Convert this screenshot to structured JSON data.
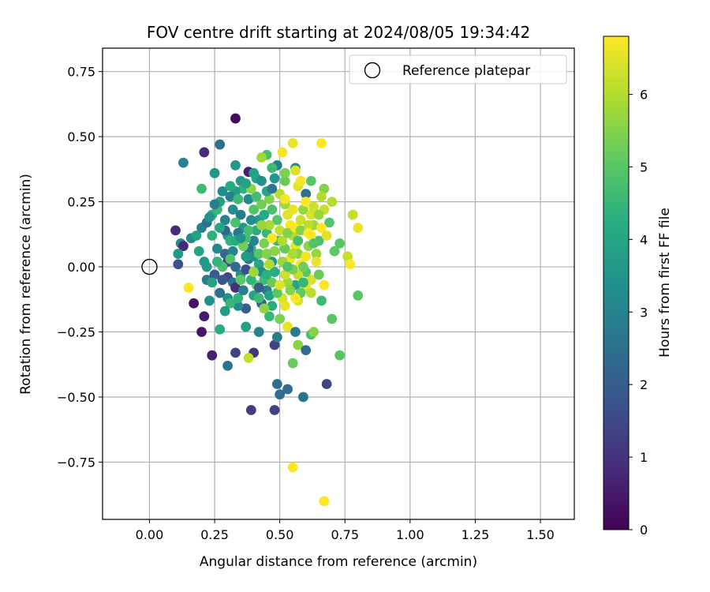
{
  "chart_data": {
    "type": "scatter",
    "title": "FOV centre drift starting at 2024/08/05 19:34:42",
    "xlabel": "Angular distance from reference (arcmin)",
    "ylabel": "Rotation from reference (arcmin)",
    "xlim": [
      -0.18,
      1.63
    ],
    "ylim": [
      -0.97,
      0.84
    ],
    "xticks": [
      0.0,
      0.25,
      0.5,
      0.75,
      1.0,
      1.25,
      1.5
    ],
    "xtick_labels": [
      "0.00",
      "0.25",
      "0.50",
      "0.75",
      "1.00",
      "1.25",
      "1.50"
    ],
    "yticks": [
      -0.75,
      -0.5,
      -0.25,
      0.0,
      0.25,
      0.5,
      0.75
    ],
    "ytick_labels": [
      "−0.75",
      "−0.50",
      "−0.25",
      "0.00",
      "0.25",
      "0.50",
      "0.75"
    ],
    "grid": true,
    "legend": {
      "position": "top-right",
      "entries": [
        "Reference platepar"
      ]
    },
    "reference_point": {
      "x": 0.0,
      "y": 0.0
    },
    "colorbar": {
      "label": "Hours from first FF file",
      "min": 0,
      "max": 6.8,
      "ticks": [
        0,
        1,
        2,
        3,
        4,
        5,
        6
      ],
      "tick_labels": [
        "0",
        "1",
        "2",
        "3",
        "4",
        "5",
        "6"
      ],
      "colormap": "viridis"
    },
    "points": [
      [
        0.33,
        0.57,
        0.2
      ],
      [
        0.55,
        0.475,
        6.6
      ],
      [
        0.66,
        0.475,
        6.8
      ],
      [
        0.21,
        0.44,
        0.8
      ],
      [
        0.27,
        0.47,
        2.5
      ],
      [
        0.45,
        0.43,
        4.8
      ],
      [
        0.51,
        0.44,
        6.7
      ],
      [
        0.13,
        0.4,
        3.0
      ],
      [
        0.33,
        0.39,
        3.6
      ],
      [
        0.38,
        0.365,
        0.6
      ],
      [
        0.43,
        0.42,
        5.8
      ],
      [
        0.56,
        0.38,
        3.2
      ],
      [
        0.56,
        0.37,
        6.4
      ],
      [
        0.35,
        0.33,
        3.6
      ],
      [
        0.41,
        0.34,
        4.0
      ],
      [
        0.48,
        0.34,
        3.6
      ],
      [
        0.52,
        0.33,
        5.2
      ],
      [
        0.25,
        0.36,
        3.6
      ],
      [
        0.62,
        0.33,
        5.0
      ],
      [
        0.67,
        0.3,
        5.5
      ],
      [
        0.2,
        0.3,
        4.6
      ],
      [
        0.6,
        0.28,
        2.5
      ],
      [
        0.66,
        0.27,
        6.0
      ],
      [
        0.16,
        0.11,
        3.2
      ],
      [
        0.1,
        0.14,
        0.8
      ],
      [
        0.12,
        0.09,
        3.3
      ],
      [
        0.13,
        0.08,
        0.8
      ],
      [
        0.11,
        0.05,
        3.6
      ],
      [
        0.11,
        0.01,
        1.7
      ],
      [
        0.15,
        -0.08,
        6.8
      ],
      [
        0.17,
        -0.14,
        0.4
      ],
      [
        0.2,
        -0.25,
        0.4
      ],
      [
        0.21,
        -0.19,
        0.5
      ],
      [
        0.24,
        -0.34,
        0.6
      ],
      [
        0.27,
        -0.24,
        4.2
      ],
      [
        0.3,
        -0.38,
        2.6
      ],
      [
        0.33,
        -0.33,
        1.3
      ],
      [
        0.37,
        -0.23,
        3.8
      ],
      [
        0.4,
        -0.33,
        1.0
      ],
      [
        0.39,
        -0.55,
        1.2
      ],
      [
        0.48,
        -0.3,
        1.3
      ],
      [
        0.48,
        -0.55,
        1.3
      ],
      [
        0.49,
        -0.45,
        2.5
      ],
      [
        0.5,
        -0.49,
        2.5
      ],
      [
        0.53,
        -0.47,
        2.4
      ],
      [
        0.59,
        -0.5,
        2.6
      ],
      [
        0.68,
        -0.45,
        1.4
      ],
      [
        0.38,
        -0.35,
        6.2
      ],
      [
        0.55,
        -0.37,
        5.2
      ],
      [
        0.57,
        -0.3,
        5.6
      ],
      [
        0.6,
        -0.32,
        2.4
      ],
      [
        0.62,
        -0.26,
        4.8
      ],
      [
        0.63,
        -0.25,
        5.5
      ],
      [
        0.66,
        -0.13,
        4.6
      ],
      [
        0.7,
        -0.2,
        5.0
      ],
      [
        0.73,
        -0.34,
        5.0
      ],
      [
        0.55,
        -0.77,
        6.8
      ],
      [
        0.67,
        -0.9,
        6.8
      ],
      [
        0.8,
        -0.11,
        5.0
      ],
      [
        0.76,
        0.04,
        6.2
      ],
      [
        0.77,
        0.01,
        6.8
      ],
      [
        0.73,
        0.09,
        5.0
      ],
      [
        0.78,
        0.2,
        6.2
      ],
      [
        0.8,
        0.15,
        6.6
      ],
      [
        0.67,
        0.22,
        6.2
      ],
      [
        0.7,
        0.25,
        6.0
      ],
      [
        0.69,
        0.17,
        4.9
      ],
      [
        0.65,
        0.1,
        4.8
      ],
      [
        0.64,
        0.05,
        5.7
      ],
      [
        0.62,
        -0.05,
        6.4
      ],
      [
        0.67,
        -0.07,
        6.8
      ],
      [
        0.6,
        -0.02,
        5.0
      ],
      [
        0.57,
        -0.13,
        6.4
      ],
      [
        0.56,
        -0.07,
        4.0
      ],
      [
        0.53,
        -0.06,
        5.8
      ],
      [
        0.52,
        -0.15,
        6.6
      ],
      [
        0.5,
        -0.2,
        5.4
      ],
      [
        0.46,
        -0.19,
        4.5
      ],
      [
        0.43,
        -0.14,
        2.2
      ],
      [
        0.4,
        -0.11,
        4.0
      ],
      [
        0.37,
        -0.16,
        2.0
      ],
      [
        0.34,
        -0.15,
        3.2
      ],
      [
        0.3,
        -0.12,
        3.4
      ],
      [
        0.27,
        -0.1,
        2.5
      ],
      [
        0.23,
        -0.13,
        3.4
      ],
      [
        0.22,
        -0.05,
        2.8
      ],
      [
        0.25,
        -0.03,
        2.0
      ],
      [
        0.22,
        0.0,
        3.7
      ],
      [
        0.21,
        0.02,
        3.6
      ],
      [
        0.19,
        0.06,
        4.0
      ],
      [
        0.18,
        0.12,
        3.9
      ],
      [
        0.2,
        0.15,
        3.0
      ],
      [
        0.22,
        0.17,
        2.5
      ],
      [
        0.24,
        0.2,
        4.2
      ],
      [
        0.26,
        0.22,
        4.5
      ],
      [
        0.27,
        0.25,
        3.8
      ],
      [
        0.29,
        0.18,
        3.0
      ],
      [
        0.3,
        0.12,
        3.6
      ],
      [
        0.31,
        0.1,
        4.4
      ],
      [
        0.29,
        0.05,
        2.3
      ],
      [
        0.3,
        0.02,
        1.3
      ],
      [
        0.28,
        0.0,
        4.8
      ],
      [
        0.3,
        -0.04,
        1.5
      ],
      [
        0.32,
        -0.06,
        2.6
      ],
      [
        0.33,
        -0.08,
        0.9
      ],
      [
        0.35,
        -0.03,
        3.4
      ],
      [
        0.37,
        -0.01,
        1.6
      ],
      [
        0.38,
        0.03,
        2.8
      ],
      [
        0.39,
        0.07,
        4.5
      ],
      [
        0.4,
        0.1,
        3.0
      ],
      [
        0.41,
        0.14,
        4.2
      ],
      [
        0.42,
        0.18,
        3.6
      ],
      [
        0.4,
        0.22,
        4.9
      ],
      [
        0.38,
        0.26,
        3.2
      ],
      [
        0.36,
        0.3,
        4.4
      ],
      [
        0.33,
        0.29,
        3.7
      ],
      [
        0.31,
        0.27,
        3.0
      ],
      [
        0.35,
        0.2,
        2.8
      ],
      [
        0.36,
        0.15,
        3.6
      ],
      [
        0.37,
        0.11,
        4.8
      ],
      [
        0.38,
        0.07,
        2.6
      ],
      [
        0.4,
        0.04,
        3.4
      ],
      [
        0.42,
        0.01,
        4.0
      ],
      [
        0.43,
        -0.02,
        3.2
      ],
      [
        0.44,
        -0.05,
        4.6
      ],
      [
        0.45,
        -0.09,
        2.8
      ],
      [
        0.46,
        -0.11,
        3.9
      ],
      [
        0.47,
        -0.06,
        5.2
      ],
      [
        0.48,
        -0.02,
        4.2
      ],
      [
        0.47,
        0.02,
        3.5
      ],
      [
        0.48,
        0.06,
        5.6
      ],
      [
        0.49,
        0.1,
        4.6
      ],
      [
        0.5,
        0.14,
        6.2
      ],
      [
        0.49,
        0.18,
        5.0
      ],
      [
        0.47,
        0.22,
        4.8
      ],
      [
        0.46,
        0.26,
        5.5
      ],
      [
        0.45,
        0.29,
        4.0
      ],
      [
        0.5,
        0.28,
        6.1
      ],
      [
        0.52,
        0.24,
        5.8
      ],
      [
        0.53,
        0.2,
        6.5
      ],
      [
        0.54,
        0.16,
        6.8
      ],
      [
        0.55,
        0.12,
        6.0
      ],
      [
        0.56,
        0.08,
        6.6
      ],
      [
        0.57,
        0.05,
        5.6
      ],
      [
        0.58,
        0.01,
        6.8
      ],
      [
        0.57,
        -0.03,
        6.2
      ],
      [
        0.55,
        -0.01,
        5.4
      ],
      [
        0.54,
        0.03,
        6.7
      ],
      [
        0.52,
        0.07,
        5.2
      ],
      [
        0.51,
        0.1,
        6.0
      ],
      [
        0.53,
        0.13,
        5.5
      ],
      [
        0.56,
        0.15,
        6.9
      ],
      [
        0.58,
        0.18,
        6.3
      ],
      [
        0.59,
        0.22,
        5.7
      ],
      [
        0.6,
        0.25,
        6.8
      ],
      [
        0.62,
        0.2,
        6.4
      ],
      [
        0.63,
        0.16,
        5.8
      ],
      [
        0.62,
        0.12,
        6.8
      ],
      [
        0.61,
        0.08,
        5.6
      ],
      [
        0.6,
        0.04,
        6.7
      ],
      [
        0.59,
        0.0,
        5.3
      ],
      [
        0.6,
        -0.08,
        6.5
      ],
      [
        0.58,
        -0.1,
        5.1
      ],
      [
        0.56,
        -0.12,
        6.8
      ],
      [
        0.54,
        -0.09,
        5.5
      ],
      [
        0.51,
        -0.12,
        6.4
      ],
      [
        0.49,
        -0.1,
        5.0
      ],
      [
        0.47,
        -0.15,
        4.2
      ],
      [
        0.44,
        -0.16,
        5.6
      ],
      [
        0.42,
        -0.12,
        4.6
      ],
      [
        0.41,
        -0.07,
        5.2
      ],
      [
        0.39,
        -0.05,
        4.4
      ],
      [
        0.4,
        -0.02,
        5.8
      ],
      [
        0.42,
        0.05,
        5.0
      ],
      [
        0.44,
        0.09,
        5.4
      ],
      [
        0.45,
        0.13,
        4.5
      ],
      [
        0.46,
        0.16,
        5.9
      ],
      [
        0.44,
        0.2,
        4.1
      ],
      [
        0.43,
        0.24,
        5.3
      ],
      [
        0.41,
        0.27,
        4.7
      ],
      [
        0.39,
        0.3,
        5.6
      ],
      [
        0.37,
        0.32,
        3.9
      ],
      [
        0.34,
        0.26,
        4.6
      ],
      [
        0.32,
        0.22,
        3.3
      ],
      [
        0.33,
        0.17,
        4.8
      ],
      [
        0.34,
        0.13,
        2.7
      ],
      [
        0.33,
        0.1,
        4.2
      ],
      [
        0.32,
        0.06,
        3.1
      ],
      [
        0.31,
        0.03,
        4.9
      ],
      [
        0.33,
        0.0,
        2.4
      ],
      [
        0.34,
        -0.12,
        4.4
      ],
      [
        0.36,
        -0.09,
        2.9
      ],
      [
        0.35,
        -0.05,
        5.1
      ],
      [
        0.37,
        0.04,
        3.7
      ],
      [
        0.36,
        0.08,
        5.3
      ],
      [
        0.35,
        0.11,
        3.5
      ],
      [
        0.38,
        0.14,
        4.7
      ],
      [
        0.39,
        0.18,
        3.3
      ],
      [
        0.43,
        0.16,
        5.7
      ],
      [
        0.45,
        0.05,
        5.5
      ],
      [
        0.46,
        0.01,
        6.0
      ],
      [
        0.45,
        -0.03,
        4.3
      ],
      [
        0.51,
        0.02,
        5.7
      ],
      [
        0.52,
        -0.03,
        6.3
      ],
      [
        0.53,
        0.0,
        4.9
      ],
      [
        0.55,
        0.05,
        5.9
      ],
      [
        0.57,
        0.1,
        4.7
      ],
      [
        0.58,
        0.14,
        5.5
      ],
      [
        0.61,
        0.16,
        6.1
      ],
      [
        0.63,
        0.09,
        4.9
      ],
      [
        0.64,
        0.02,
        6.6
      ],
      [
        0.65,
        -0.03,
        5.2
      ],
      [
        0.62,
        -0.1,
        6.1
      ],
      [
        0.59,
        -0.06,
        4.5
      ],
      [
        0.53,
        -0.23,
        6.6
      ],
      [
        0.56,
        -0.25,
        2.8
      ],
      [
        0.49,
        -0.27,
        2.9
      ],
      [
        0.42,
        -0.08,
        2.0
      ],
      [
        0.28,
        -0.05,
        1.8
      ],
      [
        0.26,
        0.07,
        3.1
      ],
      [
        0.24,
        0.12,
        4.3
      ],
      [
        0.23,
        0.19,
        3.5
      ],
      [
        0.25,
        0.24,
        2.9
      ],
      [
        0.28,
        0.29,
        3.3
      ],
      [
        0.31,
        0.31,
        4.1
      ],
      [
        0.29,
        0.14,
        2.2
      ],
      [
        0.27,
        0.15,
        4.0
      ],
      [
        0.26,
        0.02,
        4.4
      ],
      [
        0.24,
        -0.06,
        3.9
      ],
      [
        0.31,
        -0.14,
        4.5
      ],
      [
        0.29,
        -0.17,
        3.7
      ],
      [
        0.42,
        -0.25,
        3.0
      ],
      [
        0.47,
        0.3,
        2.7
      ],
      [
        0.52,
        0.36,
        5.4
      ],
      [
        0.57,
        0.31,
        6.5
      ],
      [
        0.5,
        -0.07,
        6.5
      ],
      [
        0.47,
        0.11,
        6.8
      ],
      [
        0.52,
        0.26,
        6.7
      ],
      [
        0.55,
        0.22,
        6.6
      ],
      [
        0.61,
        0.13,
        6.8
      ],
      [
        0.58,
        0.33,
        6.7
      ],
      [
        0.49,
        0.39,
        2.9
      ],
      [
        0.47,
        0.38,
        4.6
      ],
      [
        0.4,
        0.36,
        3.9
      ],
      [
        0.43,
        0.33,
        3.4
      ],
      [
        0.63,
        0.23,
        6.3
      ],
      [
        0.65,
        0.2,
        5.7
      ],
      [
        0.66,
        0.15,
        6.8
      ],
      [
        0.68,
        0.12,
        6.5
      ],
      [
        0.71,
        0.06,
        5.1
      ]
    ]
  }
}
